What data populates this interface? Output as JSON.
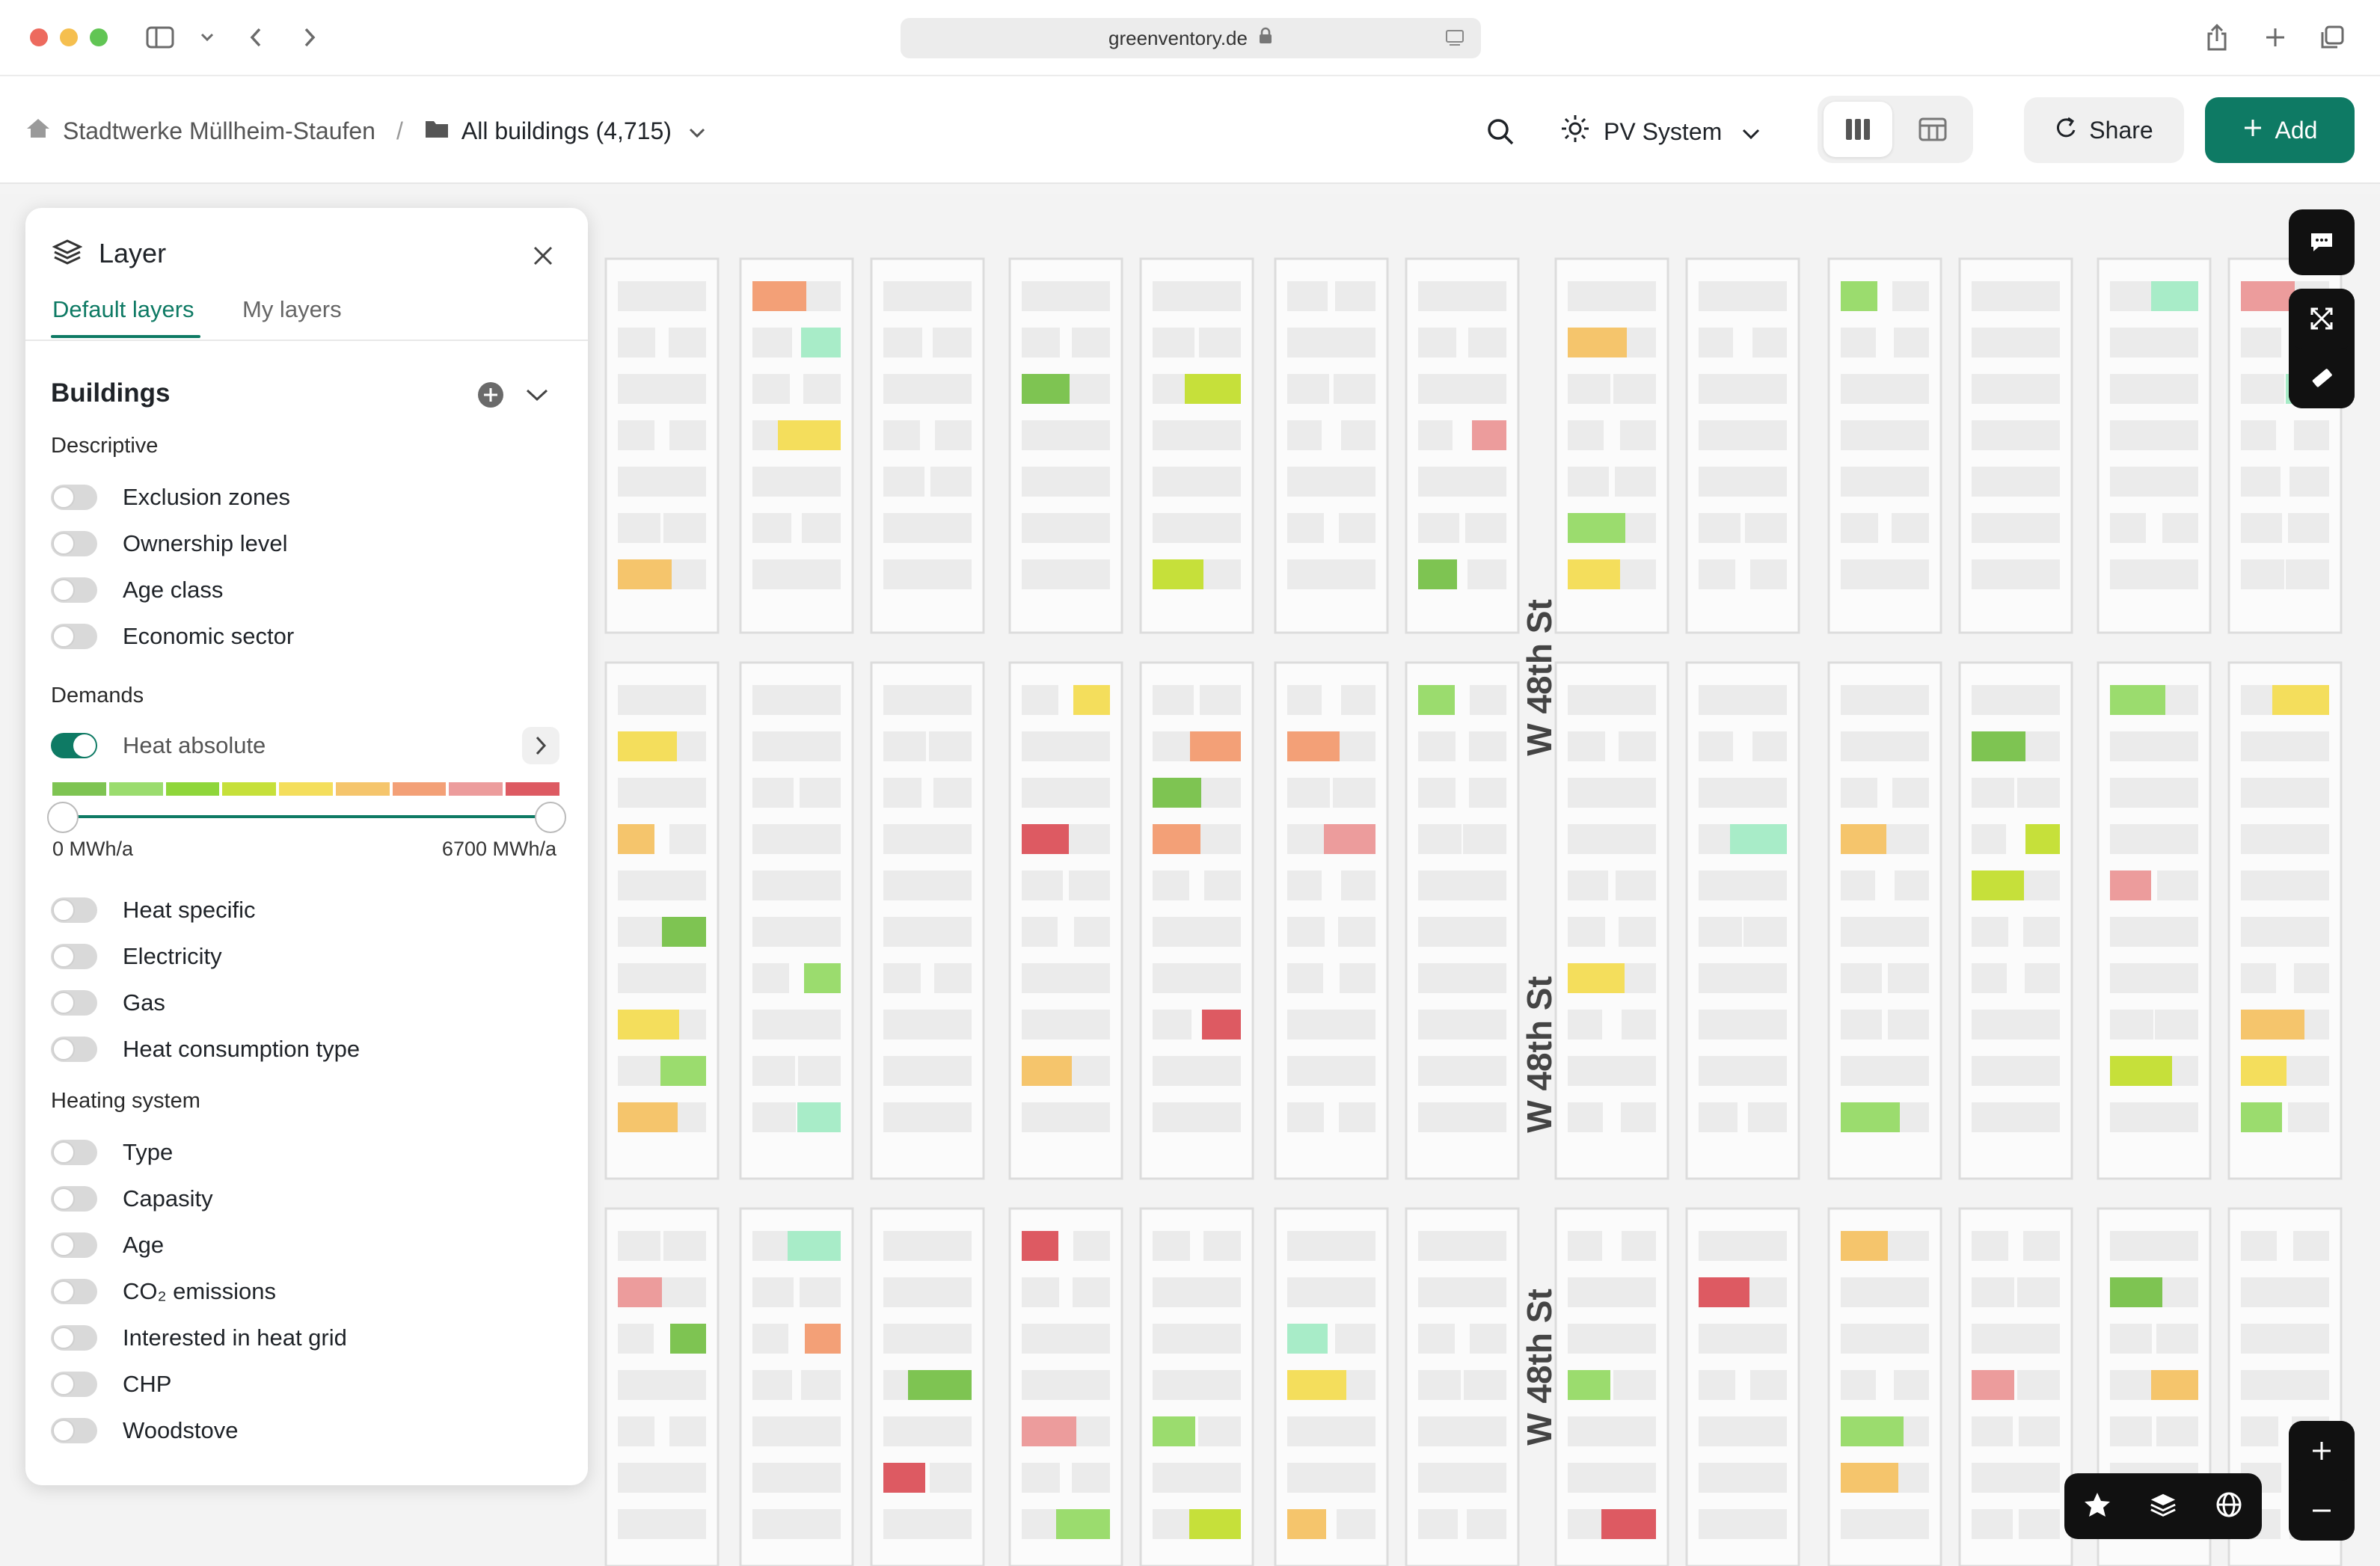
{
  "browser": {
    "url": "greenventory.de",
    "lock_icon": "lock-icon"
  },
  "header": {
    "org_name": "Stadtwerke Müllheim-Staufen",
    "separator": "/",
    "buildings_selector": "All buildings (4,715)",
    "layer_selector": "PV System",
    "share_label": "Share",
    "add_label": "Add"
  },
  "panel": {
    "title": "Layer",
    "tabs": [
      "Default layers",
      "My layers"
    ],
    "active_tab": "Default layers",
    "section_title": "Buildings",
    "groups": {
      "descriptive": {
        "label": "Descriptive",
        "items": [
          {
            "label": "Exclusion zones",
            "on": false
          },
          {
            "label": "Ownership level",
            "on": false
          },
          {
            "label": "Age class",
            "on": false
          },
          {
            "label": "Economic sector",
            "on": false
          }
        ]
      },
      "demands": {
        "label": "Demands",
        "active_item": {
          "label": "Heat absolute",
          "on": true
        },
        "legend_colors": [
          "#7ec452",
          "#9bdc6e",
          "#8fd63a",
          "#c6e03a",
          "#f4de5c",
          "#f5c56c",
          "#f3a077",
          "#ec9c9c",
          "#dd5a62"
        ],
        "range_min": "0 MWh/a",
        "range_max": "6700 MWh/a",
        "slider_min_fraction": 0.0,
        "slider_max_fraction": 1.0,
        "items": [
          {
            "label": "Heat specific",
            "on": false
          },
          {
            "label": "Electricity",
            "on": false
          },
          {
            "label": "Gas",
            "on": false
          },
          {
            "label": "Heat consumption type",
            "on": false
          }
        ]
      },
      "heating": {
        "label": "Heating system",
        "items": [
          {
            "label": "Type",
            "on": false
          },
          {
            "label": "Capasity",
            "on": false
          },
          {
            "label": "Age",
            "on": false
          },
          {
            "label": "CO₂ emissions",
            "on": false
          },
          {
            "label": "Interested in heat grid",
            "on": false
          },
          {
            "label": "CHP",
            "on": false
          },
          {
            "label": "Woodstove",
            "on": false
          }
        ]
      }
    }
  },
  "map": {
    "street_labels": [
      "W 48th St",
      "W 48th St",
      "W 48th St"
    ]
  },
  "colors": {
    "accent": "#0e7a64",
    "panel_bg": "#ffffff",
    "dark_button": "#111111"
  }
}
